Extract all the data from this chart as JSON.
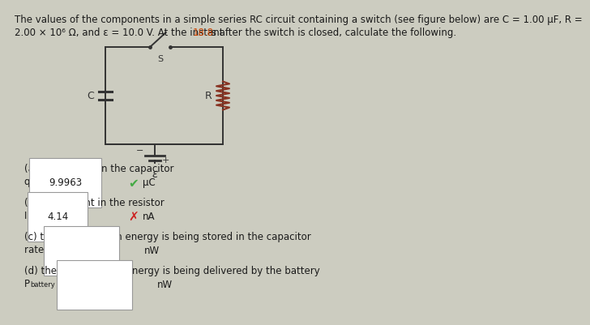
{
  "bg_color": "#ccccc0",
  "text_color": "#1a1a1a",
  "highlight_color": "#cc4400",
  "circuit_color": "#333333",
  "resistor_color": "#883322",
  "title_line1": "The values of the components in a simple series RC circuit containing a switch (see figure below) are C = 1.00 μF, R =",
  "title_line2_pre": "2.00 × 10⁶ Ω, and ε = 10.0 V. At the instant ",
  "title_highlight": "18.8",
  "title_line2_post": " s after the switch is closed, calculate the following.",
  "part_a_label": "(a) the charge on the capacitor",
  "part_a_val": "9.9963",
  "part_a_unit": "μC",
  "part_b_label": "(b) the current in the resistor",
  "part_b_val": "4.14",
  "part_b_unit": "nA",
  "part_c_label": "(c) the rate at which energy is being stored in the capacitor",
  "part_c_unit": "nW",
  "part_d_label": "(d) the rate at which energy is being delivered by the battery",
  "part_d_unit": "nW",
  "fs_title": 8.5,
  "fs_body": 8.5,
  "fs_small": 7.0
}
